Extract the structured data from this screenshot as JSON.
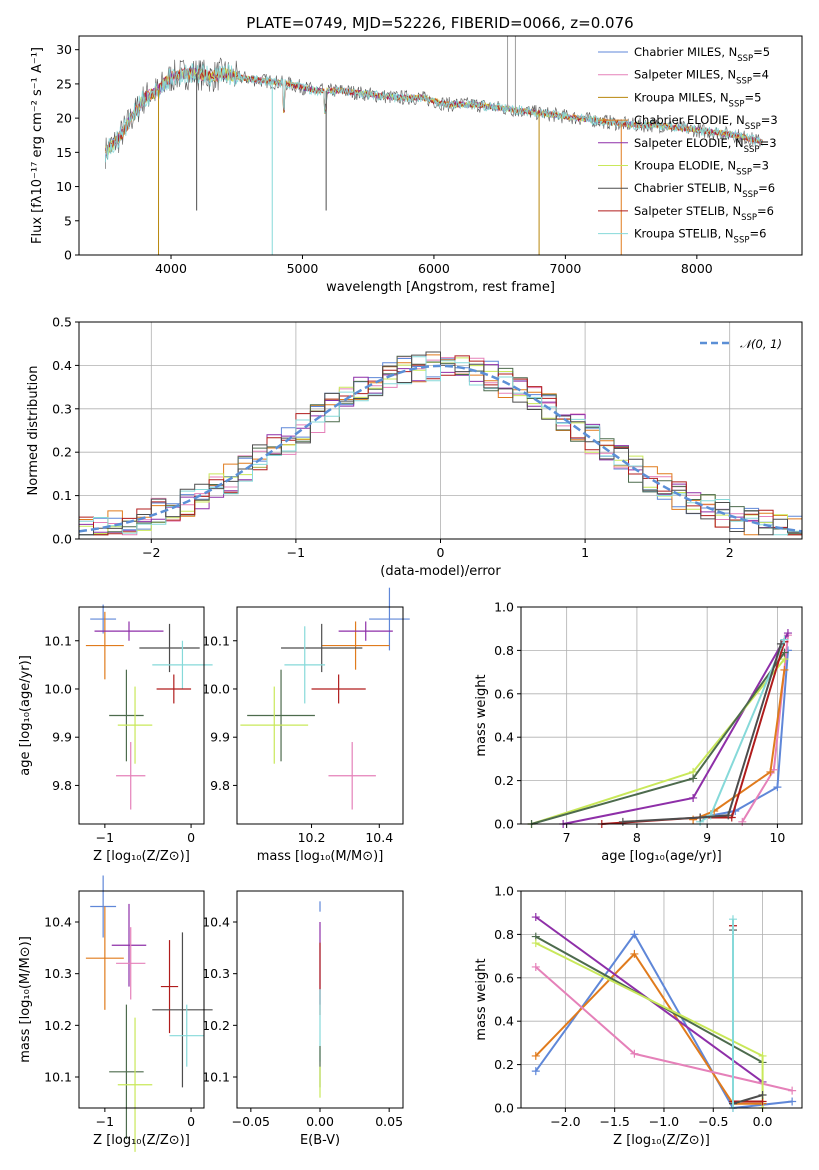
{
  "chart_data": [
    {
      "id": "spectrum",
      "type": "line",
      "title": "PLATE=0749, MJD=52226, FIBERID=0066, z=0.076",
      "xlabel": "wavelength [Angstrom, rest frame]",
      "ylabel": "Flux [fλ10⁻¹⁷ erg cm⁻² s⁻¹ A⁻¹]",
      "xlim": [
        3300,
        8800
      ],
      "ylim": [
        0,
        32
      ],
      "xticks": [
        "4000",
        "5000",
        "6000",
        "7000",
        "8000"
      ],
      "yticks": [
        "0",
        "5",
        "10",
        "15",
        "20",
        "25",
        "30"
      ],
      "legend_position": "top-right",
      "grid": false,
      "series": [
        {
          "name": "Chabrier MILES, N",
          "sub": "SSP",
          "suffix": "=5",
          "color": "#5f87d8"
        },
        {
          "name": "Salpeter MILES, N",
          "sub": "SSP",
          "suffix": "=4",
          "color": "#e581b9"
        },
        {
          "name": "Kroupa MILES, N",
          "sub": "SSP",
          "suffix": "=5",
          "color": "#b8860b"
        },
        {
          "name": "Chabrier ELODIE, N",
          "sub": "SSP",
          "suffix": "=3",
          "color": "#e07b1d"
        },
        {
          "name": "Salpeter ELODIE, N",
          "sub": "SSP",
          "suffix": "=3",
          "color": "#8e2fa8"
        },
        {
          "name": "Kroupa ELODIE, N",
          "sub": "SSP",
          "suffix": "=3",
          "color": "#c9e85a"
        },
        {
          "name": "Chabrier STELIB, N",
          "sub": "SSP",
          "suffix": "=6",
          "color": "#4d4d4d"
        },
        {
          "name": "Salpeter STELIB, N",
          "sub": "SSP",
          "suffix": "=6",
          "color": "#b01c1c"
        },
        {
          "name": "Kroupa STELIB, N",
          "sub": "SSP",
          "suffix": "=6",
          "color": "#86d9d9"
        }
      ],
      "continuum": [
        [
          3500,
          15
        ],
        [
          3600,
          17
        ],
        [
          3700,
          20
        ],
        [
          3800,
          23
        ],
        [
          3900,
          24
        ],
        [
          4000,
          26
        ],
        [
          4100,
          26.5
        ],
        [
          4200,
          26.5
        ],
        [
          4300,
          26
        ],
        [
          4400,
          26.5
        ],
        [
          4500,
          26
        ],
        [
          4700,
          25.5
        ],
        [
          4900,
          25
        ],
        [
          5100,
          24
        ],
        [
          5300,
          24
        ],
        [
          5500,
          23.5
        ],
        [
          5700,
          23
        ],
        [
          5900,
          23
        ],
        [
          6100,
          22
        ],
        [
          6300,
          22
        ],
        [
          6500,
          21.5
        ],
        [
          6700,
          21
        ],
        [
          6900,
          20.5
        ],
        [
          7100,
          20
        ],
        [
          7300,
          19.5
        ],
        [
          7500,
          19
        ],
        [
          7700,
          19
        ],
        [
          7900,
          18.5
        ],
        [
          8100,
          18
        ],
        [
          8300,
          17.5
        ],
        [
          8500,
          16.5
        ]
      ]
    },
    {
      "id": "residuals",
      "type": "histogram",
      "xlabel": "(data-model)/error",
      "ylabel": "Normed distribution",
      "xlim": [
        -2.5,
        2.5
      ],
      "ylim": [
        0,
        0.5
      ],
      "xticks": [
        "−2",
        "−1",
        "0",
        "1",
        "2"
      ],
      "yticks": [
        "0.0",
        "0.1",
        "0.2",
        "0.3",
        "0.4",
        "0.5"
      ],
      "grid": true,
      "legend": {
        "label": "𝒩(0, 1)",
        "position": "top-right",
        "color": "#5b8fd6"
      },
      "curve": "gaussian mean 0 sigma 1"
    },
    {
      "id": "age-vs-Z",
      "type": "errorbar",
      "xlabel": "Z [log₁₀(Z/Z⊙)]",
      "ylabel": "age [log₁₀(age/yr)]",
      "xlim": [
        -1.3,
        0.15
      ],
      "ylim": [
        9.72,
        10.17
      ],
      "xticks": [
        "−1",
        "0"
      ],
      "yticks": [
        "9.8",
        "9.9",
        "10.0",
        "10.1"
      ],
      "points": [
        {
          "x": -1.02,
          "y": 10.145,
          "xerr": 0.15,
          "yerr": 0.03,
          "color": "#5f87d8"
        },
        {
          "x": -1.0,
          "y": 10.09,
          "xerr": 0.22,
          "yerr": 0.07,
          "color": "#e07b1d"
        },
        {
          "x": -0.72,
          "y": 10.12,
          "xerr": 0.4,
          "yerr": 0.02,
          "color": "#8e2fa8"
        },
        {
          "x": -0.25,
          "y": 10.085,
          "xerr": 0.35,
          "yerr": 0.05,
          "color": "#4d4d4d"
        },
        {
          "x": -0.1,
          "y": 10.05,
          "xerr": 0.35,
          "yerr": 0.05,
          "color": "#86d9d9"
        },
        {
          "x": -0.2,
          "y": 10.0,
          "xerr": 0.2,
          "yerr": 0.03,
          "color": "#b01c1c"
        },
        {
          "x": -0.75,
          "y": 9.945,
          "xerr": 0.2,
          "yerr": 0.095,
          "color": "#4d6b4d"
        },
        {
          "x": -0.65,
          "y": 9.925,
          "xerr": 0.2,
          "yerr": 0.08,
          "color": "#c9e85a"
        },
        {
          "x": -0.7,
          "y": 9.82,
          "xerr": 0.17,
          "yerr": 0.07,
          "color": "#e581b9"
        }
      ]
    },
    {
      "id": "age-vs-mass",
      "type": "errorbar",
      "xlabel": "mass [log₁₀(M/M⊙)]",
      "ylabel": "",
      "xlim": [
        9.98,
        10.47
      ],
      "ylim": [
        9.72,
        10.17
      ],
      "xticks": [
        "10.2",
        "10.4"
      ],
      "yticks": [
        "9.8",
        "9.9",
        "10.0",
        "10.1"
      ],
      "points": [
        {
          "x": 10.43,
          "y": 10.145,
          "xerr": 0.06,
          "yerr": 0.065,
          "color": "#5f87d8"
        },
        {
          "x": 10.33,
          "y": 10.09,
          "xerr": 0.1,
          "yerr": 0.05,
          "color": "#e07b1d"
        },
        {
          "x": 10.36,
          "y": 10.12,
          "xerr": 0.08,
          "yerr": 0.02,
          "color": "#8e2fa8"
        },
        {
          "x": 10.23,
          "y": 10.085,
          "xerr": 0.12,
          "yerr": 0.05,
          "color": "#4d4d4d"
        },
        {
          "x": 10.18,
          "y": 10.05,
          "xerr": 0.06,
          "yerr": 0.08,
          "color": "#86d9d9"
        },
        {
          "x": 10.28,
          "y": 10.0,
          "xerr": 0.08,
          "yerr": 0.03,
          "color": "#b01c1c"
        },
        {
          "x": 10.11,
          "y": 9.945,
          "xerr": 0.1,
          "yerr": 0.095,
          "color": "#4d6b4d"
        },
        {
          "x": 10.09,
          "y": 9.925,
          "xerr": 0.1,
          "yerr": 0.08,
          "color": "#c9e85a"
        },
        {
          "x": 10.32,
          "y": 9.82,
          "xerr": 0.07,
          "yerr": 0.07,
          "color": "#e581b9"
        }
      ]
    },
    {
      "id": "mass-weight-vs-age",
      "type": "line",
      "xlabel": "age  [log₁₀(age/yr)]",
      "ylabel": "mass weight",
      "xlim": [
        6.35,
        10.35
      ],
      "ylim": [
        0,
        1.0
      ],
      "xticks": [
        "7",
        "8",
        "9",
        "10"
      ],
      "yticks": [
        "0.0",
        "0.2",
        "0.4",
        "0.6",
        "0.8",
        "1.0"
      ],
      "grid": true,
      "series": [
        {
          "color": "#5f87d8",
          "x": [
            8.9,
            9.4,
            10.0,
            10.15
          ],
          "y": [
            0.03,
            0.06,
            0.17,
            0.8
          ]
        },
        {
          "color": "#e581b9",
          "x": [
            9.5,
            9.95,
            10.15
          ],
          "y": [
            0.01,
            0.25,
            0.87
          ]
        },
        {
          "color": "#e07b1d",
          "x": [
            8.8,
            9.1,
            9.9,
            10.1
          ],
          "y": [
            0.02,
            0.06,
            0.24,
            0.71
          ]
        },
        {
          "color": "#8e2fa8",
          "x": [
            6.95,
            8.8,
            10.15
          ],
          "y": [
            0.0,
            0.12,
            0.88
          ]
        },
        {
          "color": "#c9e85a",
          "x": [
            6.5,
            8.8,
            10.1
          ],
          "y": [
            0.0,
            0.24,
            0.76
          ]
        },
        {
          "color": "#4d6b4d",
          "x": [
            6.5,
            8.8,
            10.1
          ],
          "y": [
            0.0,
            0.21,
            0.79
          ]
        },
        {
          "color": "#b01c1c",
          "x": [
            7.5,
            8.9,
            9.35,
            10.1
          ],
          "y": [
            0.0,
            0.03,
            0.03,
            0.84
          ]
        },
        {
          "color": "#86d9d9",
          "x": [
            8.9,
            9.05,
            10.1
          ],
          "y": [
            0.01,
            0.04,
            0.85
          ]
        },
        {
          "color": "#4d4d4d",
          "x": [
            7.8,
            8.9,
            9.3,
            10.05
          ],
          "y": [
            0.01,
            0.03,
            0.04,
            0.83
          ]
        }
      ]
    },
    {
      "id": "mass-vs-Z",
      "type": "errorbar",
      "xlabel": "Z [log₁₀(Z/Z⊙)]",
      "ylabel": "mass [log₁₀(M/M⊙)]",
      "xlim": [
        -1.3,
        0.15
      ],
      "ylim": [
        10.04,
        10.46
      ],
      "xticks": [
        "−1",
        "0"
      ],
      "yticks": [
        "10.1",
        "10.2",
        "10.3",
        "10.4"
      ],
      "points": [
        {
          "x": -1.02,
          "y": 10.43,
          "xerr": 0.15,
          "yerr": 0.06,
          "color": "#5f87d8"
        },
        {
          "x": -1.0,
          "y": 10.33,
          "xerr": 0.22,
          "yerr": 0.1,
          "color": "#e07b1d"
        },
        {
          "x": -0.72,
          "y": 10.355,
          "xerr": 0.2,
          "yerr": 0.08,
          "color": "#8e2fa8"
        },
        {
          "x": -0.7,
          "y": 10.32,
          "xerr": 0.17,
          "yerr": 0.07,
          "color": "#e581b9"
        },
        {
          "x": -0.25,
          "y": 10.275,
          "xerr": 0.1,
          "yerr": 0.09,
          "color": "#b01c1c"
        },
        {
          "x": -0.1,
          "y": 10.23,
          "xerr": 0.35,
          "yerr": 0.15,
          "color": "#4d4d4d"
        },
        {
          "x": -0.05,
          "y": 10.18,
          "xerr": 0.2,
          "yerr": 0.06,
          "color": "#86d9d9"
        },
        {
          "x": -0.75,
          "y": 10.11,
          "xerr": 0.2,
          "yerr": 0.13,
          "color": "#4d6b4d"
        },
        {
          "x": -0.65,
          "y": 10.085,
          "xerr": 0.2,
          "yerr": 0.13,
          "color": "#c9e85a"
        }
      ]
    },
    {
      "id": "mass-vs-ebv",
      "type": "errorbar",
      "xlabel": "E(B-V)",
      "ylabel": "",
      "xlim": [
        -0.06,
        0.06
      ],
      "ylim": [
        10.04,
        10.46
      ],
      "xticks": [
        "−0.05",
        "0.00",
        "0.05"
      ],
      "yticks": [
        "10.1",
        "10.2",
        "10.3",
        "10.4"
      ],
      "points": [
        {
          "x": 0.0,
          "y": 10.43,
          "xerr": 0,
          "yerr": 0.01,
          "color": "#5f87d8"
        },
        {
          "x": 0.0,
          "y": 10.32,
          "xerr": 0,
          "yerr": 0.08,
          "color": "#8e2fa8"
        },
        {
          "x": 0.0,
          "y": 10.29,
          "xerr": 0,
          "yerr": 0.07,
          "color": "#b01c1c"
        },
        {
          "x": 0.0,
          "y": 10.2,
          "xerr": 0,
          "yerr": 0.07,
          "color": "#86d9d9"
        },
        {
          "x": 0.0,
          "y": 10.12,
          "xerr": 0,
          "yerr": 0.04,
          "color": "#4d6b4d"
        },
        {
          "x": 0.0,
          "y": 10.09,
          "xerr": 0,
          "yerr": 0.03,
          "color": "#c9e85a"
        }
      ]
    },
    {
      "id": "mass-weight-vs-Z",
      "type": "line",
      "xlabel": "Z [log₁₀(Z/Z⊙)]",
      "ylabel": "mass weight",
      "xlim": [
        -2.45,
        0.4
      ],
      "ylim": [
        0,
        1.0
      ],
      "xticks": [
        "−2.0",
        "−1.5",
        "−1.0",
        "−0.5",
        "0.0"
      ],
      "yticks": [
        "0.0",
        "0.2",
        "0.4",
        "0.6",
        "0.8",
        "1.0"
      ],
      "grid": true,
      "series": [
        {
          "color": "#5f87d8",
          "x": [
            -2.3,
            -1.3,
            -0.3,
            0.3
          ],
          "y": [
            0.17,
            0.8,
            0.0,
            0.03
          ]
        },
        {
          "color": "#e07b1d",
          "x": [
            -2.3,
            -1.3,
            -0.3,
            0.0
          ],
          "y": [
            0.24,
            0.71,
            0.02,
            0.02
          ]
        },
        {
          "color": "#8e2fa8",
          "x": [
            -2.3,
            0.0
          ],
          "y": [
            0.88,
            0.12
          ]
        },
        {
          "color": "#e581b9",
          "x": [
            -2.3,
            -1.3,
            0.3
          ],
          "y": [
            0.65,
            0.25,
            0.08
          ]
        },
        {
          "color": "#4d6b4d",
          "x": [
            -2.3,
            0.0
          ],
          "y": [
            0.79,
            0.21
          ]
        },
        {
          "color": "#c9e85a",
          "x": [
            -2.3,
            0.0,
            0.0
          ],
          "y": [
            0.76,
            0.24,
            0.0
          ]
        },
        {
          "color": "#b01c1c",
          "x": [
            -0.3,
            -0.3,
            0.0
          ],
          "y": [
            0.84,
            0.03,
            0.03
          ]
        },
        {
          "color": "#4d4d4d",
          "x": [
            -0.3,
            -0.3,
            0.0
          ],
          "y": [
            0.82,
            0.02,
            0.06
          ]
        },
        {
          "color": "#86d9d9",
          "x": [
            -0.3,
            -0.3
          ],
          "y": [
            0.87,
            0.0
          ]
        }
      ]
    }
  ]
}
